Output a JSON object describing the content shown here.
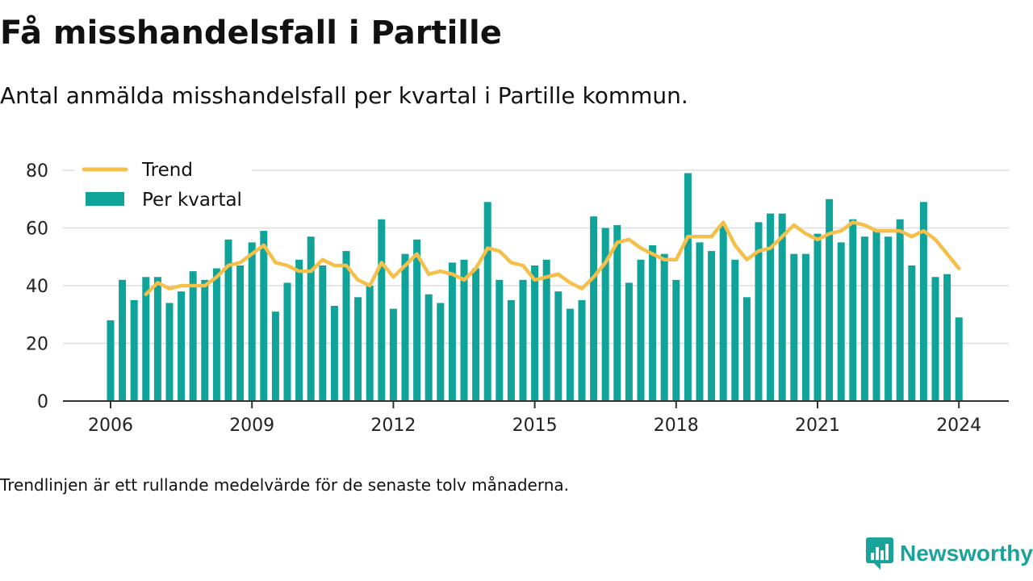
{
  "title": "Få misshandelsfall i Partille",
  "subtitle": "Antal anmälda misshandelsfall per kvartal i Partille kommun.",
  "note": "Trendlinjen är ett rullande medelvärde för de senaste tolv månaderna.",
  "brand": {
    "name": "Newsworthy",
    "icon": "newsworthy-logo-icon",
    "color": "#1aa39a"
  },
  "colors": {
    "bars": "#0fa39a",
    "trend": "#f5c04a",
    "grid": "#dddddd",
    "axis": "#333333"
  },
  "chart_data": {
    "type": "bar",
    "x_unit": "quarter",
    "xlim": [
      "2006Q1",
      "2024Q1"
    ],
    "ylim": [
      0,
      80
    ],
    "yticks": [
      0,
      20,
      40,
      60,
      80
    ],
    "xticks": [
      "2006",
      "2009",
      "2012",
      "2015",
      "2018",
      "2021",
      "2024"
    ],
    "grid": true,
    "legend_position": "top-left",
    "categories": [
      "2006Q1",
      "2006Q2",
      "2006Q3",
      "2006Q4",
      "2007Q1",
      "2007Q2",
      "2007Q3",
      "2007Q4",
      "2008Q1",
      "2008Q2",
      "2008Q3",
      "2008Q4",
      "2009Q1",
      "2009Q2",
      "2009Q3",
      "2009Q4",
      "2010Q1",
      "2010Q2",
      "2010Q3",
      "2010Q4",
      "2011Q1",
      "2011Q2",
      "2011Q3",
      "2011Q4",
      "2012Q1",
      "2012Q2",
      "2012Q3",
      "2012Q4",
      "2013Q1",
      "2013Q2",
      "2013Q3",
      "2013Q4",
      "2014Q1",
      "2014Q2",
      "2014Q3",
      "2014Q4",
      "2015Q1",
      "2015Q2",
      "2015Q3",
      "2015Q4",
      "2016Q1",
      "2016Q2",
      "2016Q3",
      "2016Q4",
      "2017Q1",
      "2017Q2",
      "2017Q3",
      "2017Q4",
      "2018Q1",
      "2018Q2",
      "2018Q3",
      "2018Q4",
      "2019Q1",
      "2019Q2",
      "2019Q3",
      "2019Q4",
      "2020Q1",
      "2020Q2",
      "2020Q3",
      "2020Q4",
      "2021Q1",
      "2021Q2",
      "2021Q3",
      "2021Q4",
      "2022Q1",
      "2022Q2",
      "2022Q3",
      "2022Q4",
      "2023Q1",
      "2023Q2",
      "2023Q3",
      "2023Q4",
      "2024Q1"
    ],
    "series": [
      {
        "name": "Per kvartal",
        "type": "bar",
        "values": [
          28,
          42,
          35,
          43,
          43,
          34,
          38,
          45,
          42,
          46,
          56,
          47,
          55,
          59,
          31,
          41,
          49,
          57,
          47,
          33,
          52,
          36,
          40,
          63,
          32,
          51,
          56,
          37,
          34,
          48,
          49,
          46,
          69,
          42,
          35,
          42,
          47,
          49,
          38,
          32,
          35,
          64,
          60,
          61,
          41,
          49,
          54,
          51,
          42,
          79,
          55,
          52,
          61,
          49,
          36,
          62,
          65,
          65,
          51,
          51,
          58,
          70,
          55,
          63,
          57,
          59,
          57,
          63,
          47,
          69,
          43,
          44,
          29
        ]
      },
      {
        "name": "Trend",
        "type": "line",
        "values": [
          null,
          null,
          null,
          37,
          41,
          39,
          40,
          40,
          40,
          43,
          47,
          48,
          51,
          54,
          48,
          47,
          45,
          45,
          49,
          47,
          47,
          42,
          40,
          48,
          43,
          47,
          51,
          44,
          45,
          44,
          42,
          46,
          53,
          52,
          48,
          47,
          42,
          43,
          44,
          41,
          39,
          43,
          48,
          55,
          56,
          53,
          51,
          49,
          49,
          57,
          57,
          57,
          62,
          54,
          49,
          52,
          53,
          57,
          61,
          58,
          56,
          58,
          59,
          62,
          61,
          59,
          59,
          59,
          57,
          59,
          56,
          51,
          46
        ]
      }
    ]
  }
}
